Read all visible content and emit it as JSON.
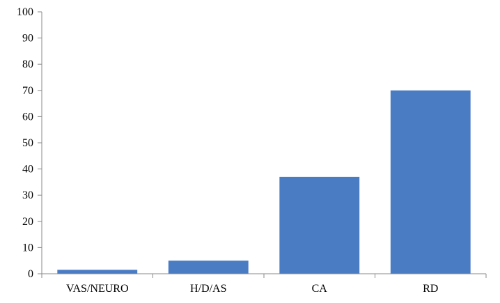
{
  "chart_data": {
    "type": "bar",
    "categories": [
      "VAS/NEURO",
      "H/D/AS",
      "CA",
      "RD"
    ],
    "values": [
      1.5,
      5,
      37,
      70
    ],
    "title": "",
    "xlabel": "",
    "ylabel": "",
    "ylim": [
      0,
      100
    ],
    "yticks": [
      0,
      10,
      20,
      30,
      40,
      50,
      60,
      70,
      80,
      90,
      100
    ],
    "grid": false,
    "legend": "none",
    "bar_color": "#4a7cc4"
  }
}
